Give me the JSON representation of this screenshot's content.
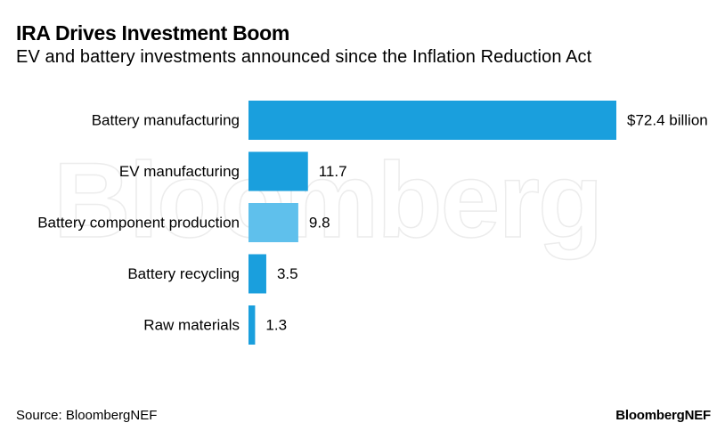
{
  "header": {
    "title": "IRA Drives Investment Boom",
    "subtitle": "EV and battery investments announced since the Inflation Reduction Act"
  },
  "watermark": "Bloomberg",
  "footer": {
    "source": "Source: BloombergNEF",
    "logo": "BloombergNEF"
  },
  "colors": {
    "bar": "#1a9fdd",
    "bar_highlight": "#5fc0ec",
    "text": "#000000"
  },
  "chart_data": {
    "type": "bar",
    "orientation": "horizontal",
    "title": "IRA Drives Investment Boom",
    "subtitle": "EV and battery investments announced since the Inflation Reduction Act",
    "categories": [
      "Battery manufacturing",
      "EV manufacturing",
      "Battery component production",
      "Battery recycling",
      "Raw materials"
    ],
    "values": [
      72.4,
      11.7,
      9.8,
      3.5,
      1.3
    ],
    "value_labels": [
      "$72.4 billion",
      "11.7",
      "9.8",
      "3.5",
      "1.3"
    ],
    "xlim": [
      0,
      72.4
    ],
    "grid": false,
    "legend": "none"
  }
}
